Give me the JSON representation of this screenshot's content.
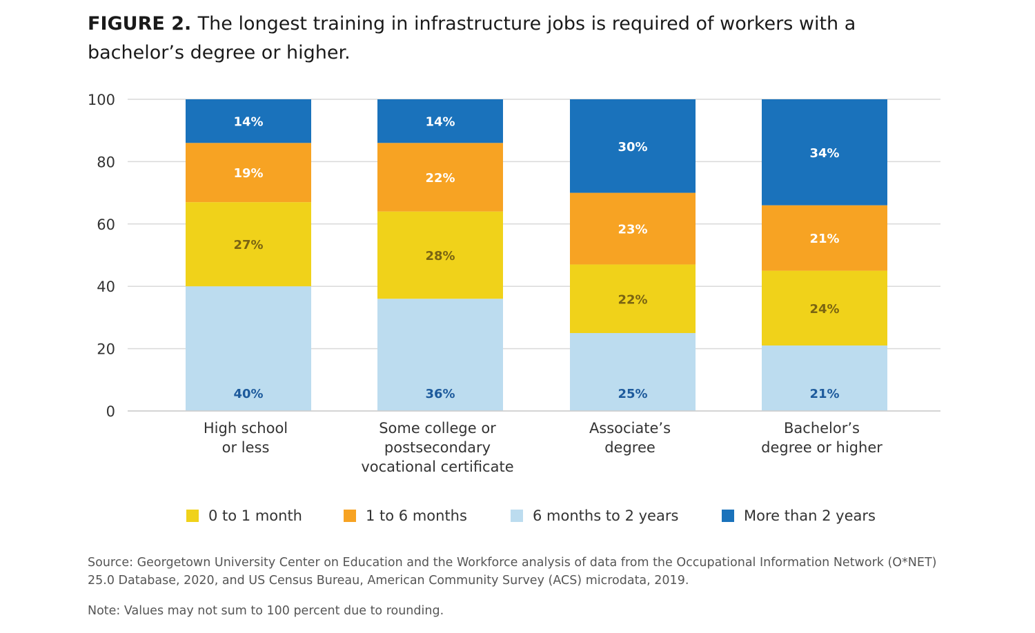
{
  "figure": {
    "label": "FIGURE 2.",
    "title": "The longest training in infrastructure jobs is required of workers with a bachelor’s degree or higher."
  },
  "chart_data": {
    "type": "bar",
    "stacked": true,
    "ylim": [
      0,
      100
    ],
    "yticks": [
      0,
      20,
      40,
      60,
      80,
      100
    ],
    "grid": true,
    "legend_position": "bottom",
    "categories": [
      [
        "High school",
        "or less"
      ],
      [
        "Some college or",
        "postsecondary",
        "vocational certificate"
      ],
      [
        "Associate’s",
        "degree"
      ],
      [
        "Bachelor’s",
        "degree or higher"
      ]
    ],
    "series": [
      {
        "name": "6 months to 2 years",
        "color": "#bcdcef",
        "label_color": "#1d5a9c",
        "values": [
          40,
          36,
          25,
          21
        ],
        "labels": [
          "40%",
          "36%",
          "25%",
          "21%"
        ]
      },
      {
        "name": "0 to 1 month",
        "color": "#f0d21a",
        "label_color": "#7a6412",
        "values": [
          27,
          28,
          22,
          24
        ],
        "labels": [
          "27%",
          "28%",
          "22%",
          "24%"
        ]
      },
      {
        "name": "1 to 6 months",
        "color": "#f7a323",
        "label_color": "#ffffff",
        "values": [
          19,
          22,
          23,
          21
        ],
        "labels": [
          "19%",
          "22%",
          "23%",
          "21%"
        ]
      },
      {
        "name": "More than 2 years",
        "color": "#1a72bb",
        "label_color": "#ffffff",
        "values": [
          14,
          14,
          30,
          34
        ],
        "labels": [
          "14%",
          "14%",
          "30%",
          "34%"
        ]
      }
    ],
    "legend_order": [
      "0 to 1 month",
      "1 to 6 months",
      "6 months to 2 years",
      "More than 2 years"
    ]
  },
  "source": "Source: Georgetown University Center on Education and the Workforce analysis of data from the Occupational Information Network (O*NET) 25.0 Database, 2020, and US Census Bureau, American Community Survey (ACS) microdata, 2019.",
  "note": "Note: Values may not sum to 100 percent due to rounding."
}
